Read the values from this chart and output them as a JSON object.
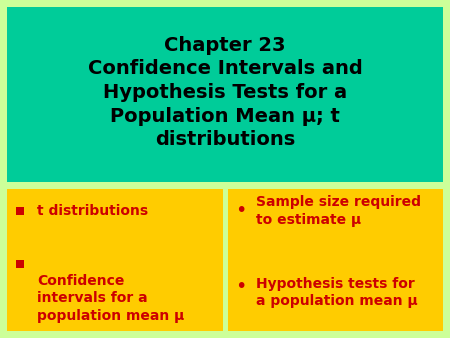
{
  "bg_color": "#ccff99",
  "title_box_color": "#00cc99",
  "bullet_box_color": "#ffcc00",
  "title_text_color": "#000000",
  "bullet_text_color": "#cc0000",
  "bullet_marker_color": "#cc0000",
  "title_lines": [
    "Chapter 23",
    "Confidence Intervals and",
    "Hypothesis Tests for a",
    "Population Mean μ; t",
    "distributions"
  ],
  "left_bullets": [
    "t distributions",
    "Confidence\nintervals for a\npopulation mean μ"
  ],
  "right_bullets": [
    "Sample size required\nto estimate μ",
    "Hypothesis tests for\na population mean μ"
  ],
  "figsize": [
    4.5,
    3.38
  ],
  "dpi": 100
}
